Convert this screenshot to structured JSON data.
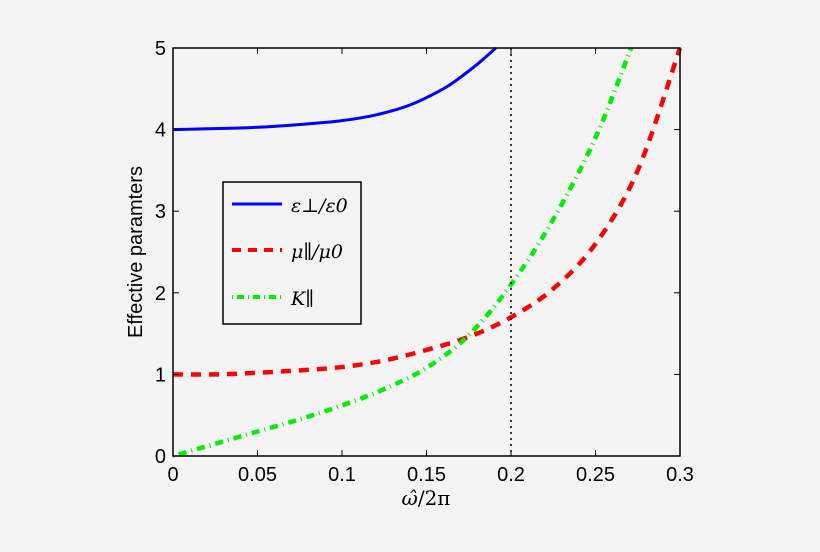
{
  "chart_data": {
    "type": "line",
    "title": "",
    "xlabel": "ω̂/2π",
    "ylabel": "Effective paramters",
    "xlim": [
      0,
      0.3
    ],
    "ylim": [
      0,
      5
    ],
    "xticks": [
      "0",
      "0.05",
      "0.1",
      "0.15",
      "0.2",
      "0.25",
      "0.3"
    ],
    "yticks": [
      "0",
      "1",
      "2",
      "3",
      "4",
      "5"
    ],
    "grid": false,
    "legend_position": "center-left",
    "vertical_line": {
      "x": 0.2,
      "style": "dotted",
      "color": "#000000"
    },
    "series": [
      {
        "name": "ε⊥/ε0",
        "color": "#0000ff",
        "style": "solid",
        "x": [
          0,
          0.02,
          0.04,
          0.06,
          0.08,
          0.1,
          0.12,
          0.14,
          0.16,
          0.17,
          0.18,
          0.191
        ],
        "y": [
          4.0,
          4.01,
          4.02,
          4.04,
          4.07,
          4.11,
          4.18,
          4.3,
          4.5,
          4.64,
          4.8,
          5.0
        ]
      },
      {
        "name": "μ∥/μ0",
        "color": "#ff0000",
        "style": "dashed",
        "x": [
          0,
          0.025,
          0.05,
          0.075,
          0.1,
          0.125,
          0.15,
          0.175,
          0.2,
          0.225,
          0.25,
          0.275,
          0.3
        ],
        "y": [
          1.0,
          1.0,
          1.02,
          1.05,
          1.09,
          1.17,
          1.3,
          1.46,
          1.7,
          2.05,
          2.6,
          3.5,
          5.0
        ]
      },
      {
        "name": "K∥",
        "color": "#00ee00",
        "style": "dash-dot",
        "x": [
          0,
          0.025,
          0.05,
          0.075,
          0.1,
          0.125,
          0.15,
          0.175,
          0.2,
          0.225,
          0.25,
          0.271
        ],
        "y": [
          0,
          0.15,
          0.3,
          0.45,
          0.62,
          0.82,
          1.08,
          1.48,
          2.1,
          2.9,
          3.9,
          5.0
        ]
      }
    ]
  },
  "axes": {
    "xlabel_main": "ω̂",
    "xlabel_rest": "/2π",
    "ylabel": "Effective paramters",
    "xticks": [
      "0",
      "0.05",
      "0.1",
      "0.15",
      "0.2",
      "0.25",
      "0.3"
    ],
    "yticks": [
      "0",
      "1",
      "2",
      "3",
      "4",
      "5"
    ]
  },
  "legend": {
    "items": [
      {
        "label": "ε⊥/ε0",
        "color": "#0000ff"
      },
      {
        "label": "μ∥/μ0",
        "color": "#ff0000"
      },
      {
        "label": "K∥",
        "color": "#00ee00"
      }
    ]
  }
}
